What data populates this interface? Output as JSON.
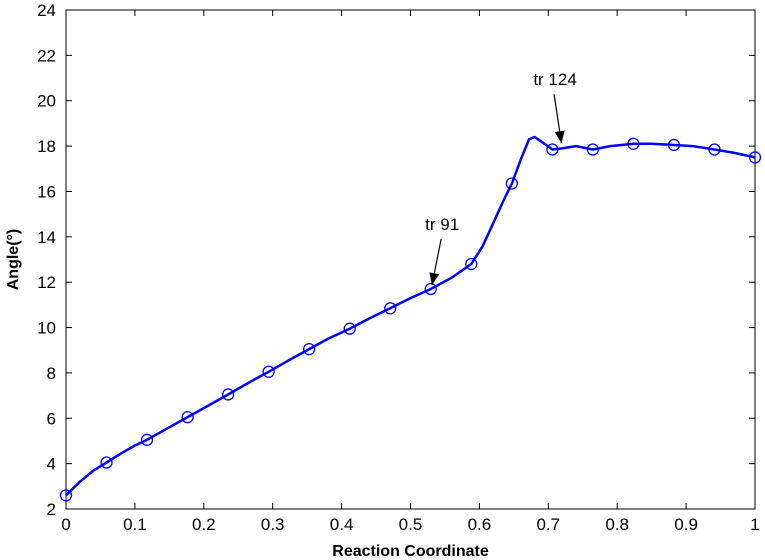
{
  "chart_data": {
    "type": "line",
    "xlabel": "Reaction Coordinate",
    "ylabel": "Angle(°)",
    "xlim": [
      0,
      1
    ],
    "ylim": [
      2,
      24
    ],
    "xticks": [
      "0",
      "0.1",
      "0.2",
      "0.3",
      "0.4",
      "0.5",
      "0.6",
      "0.7",
      "0.8",
      "0.9",
      "1"
    ],
    "yticks": [
      "2",
      "4",
      "6",
      "8",
      "10",
      "12",
      "14",
      "16",
      "18",
      "20",
      "22",
      "24"
    ],
    "grid": false,
    "line_color": "#0000ff",
    "series": [
      {
        "markers": "circle",
        "x": [
          0,
          0.0588,
          0.1176,
          0.1765,
          0.2353,
          0.2941,
          0.3529,
          0.4118,
          0.4706,
          0.5294,
          0.5882,
          0.6471,
          0.7059,
          0.7647,
          0.8235,
          0.8824,
          0.9412,
          1.0
        ],
        "y": [
          2.6,
          4.05,
          5.05,
          6.05,
          7.05,
          8.05,
          9.05,
          9.95,
          10.85,
          11.7,
          12.8,
          16.35,
          17.85,
          17.85,
          18.1,
          18.05,
          17.85,
          17.5
        ]
      }
    ],
    "curve": {
      "x": [
        0,
        0.02,
        0.04,
        0.0588,
        0.08,
        0.1,
        0.1176,
        0.15,
        0.1765,
        0.2,
        0.2353,
        0.27,
        0.2941,
        0.32,
        0.3529,
        0.38,
        0.4118,
        0.44,
        0.4706,
        0.5,
        0.5294,
        0.56,
        0.5882,
        0.605,
        0.62,
        0.635,
        0.6471,
        0.66,
        0.672,
        0.68,
        0.69,
        0.7059,
        0.72,
        0.74,
        0.7647,
        0.79,
        0.8235,
        0.85,
        0.8824,
        0.91,
        0.9412,
        0.97,
        1.0
      ],
      "y": [
        2.6,
        3.2,
        3.7,
        4.05,
        4.45,
        4.8,
        5.05,
        5.6,
        6.05,
        6.45,
        7.05,
        7.65,
        8.05,
        8.5,
        9.05,
        9.5,
        9.95,
        10.4,
        10.85,
        11.3,
        11.7,
        12.2,
        12.8,
        13.6,
        14.6,
        15.6,
        16.35,
        17.4,
        18.3,
        18.4,
        18.2,
        17.85,
        17.9,
        18.0,
        17.85,
        18.0,
        18.1,
        18.1,
        18.05,
        18.0,
        17.85,
        17.7,
        17.5
      ]
    },
    "annotations": [
      {
        "text": "tr 91",
        "x": 0.53,
        "y": 11.7
      },
      {
        "text": "tr 124",
        "x": 0.72,
        "y": 17.95
      }
    ]
  }
}
